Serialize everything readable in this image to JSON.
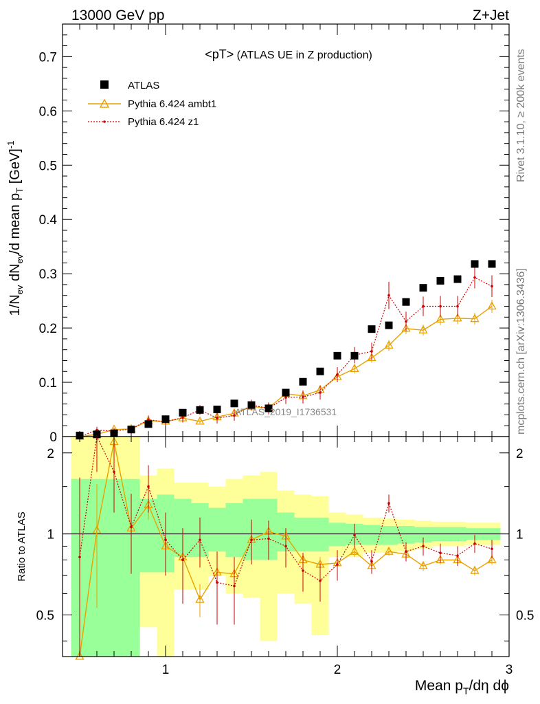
{
  "header": {
    "left": "13000 GeV pp",
    "right": "Z+Jet"
  },
  "plot_title": {
    "main": "<pT>",
    "sub": " (ATLAS UE in Z production)"
  },
  "side_label_top": "Rivet 3.1.10, ≥ 200k events",
  "side_label_bottom": "mcplots.cern.ch [arXiv:1306.3436]",
  "watermark": "ATLAS_2019_I1736531",
  "colors": {
    "atlas": "#000000",
    "ambt1": "#e8a100",
    "z1": "#cc0000",
    "band_inner": "#99ff99",
    "band_outer": "#ffff99"
  },
  "chart_data": {
    "type": "scatter",
    "x_label": "Mean p_T/dη dϕ",
    "y_label": "1/N_ev dN_ev/d mean p_T [GeV]^-1",
    "ratio_label": "Ratio to ATLAS",
    "xlim": [
      0.4,
      3.0
    ],
    "ylim": [
      0,
      0.76
    ],
    "ratio_ylim": [
      0.35,
      2.3
    ],
    "x_ticks": [
      1,
      2,
      3
    ],
    "y_ticks": [
      0,
      0.1,
      0.2,
      0.3,
      0.4,
      0.5,
      0.6,
      0.7
    ],
    "ratio_ticks": [
      0.5,
      1,
      2
    ],
    "y_tick_labels": [
      "0",
      "0.1",
      "0.2",
      "0.3",
      "0.4",
      "0.5",
      "0.6",
      "0.7"
    ],
    "x_tick_labels": [
      "1",
      "2",
      "3"
    ],
    "ratio_tick_labels": [
      "0.5",
      "1",
      "2"
    ],
    "x": [
      0.5,
      0.6,
      0.7,
      0.8,
      0.9,
      1.0,
      1.1,
      1.2,
      1.3,
      1.4,
      1.5,
      1.6,
      1.7,
      1.8,
      1.9,
      2.0,
      2.1,
      2.2,
      2.3,
      2.4,
      2.5,
      2.6,
      2.7,
      2.8,
      2.9
    ],
    "series": [
      {
        "name": "ATLAS",
        "style": "data",
        "values": [
          0.002,
          0.004,
          0.006,
          0.013,
          0.023,
          0.032,
          0.044,
          0.049,
          0.05,
          0.061,
          0.058,
          0.052,
          0.081,
          0.101,
          0.12,
          0.149,
          0.149,
          0.198,
          0.205,
          0.248,
          0.274,
          0.287,
          0.29,
          0.318,
          0.318
        ]
      },
      {
        "name": "Pythia 6.424 ambt1",
        "style": "triangle",
        "values": [
          0.0,
          0.004,
          0.013,
          0.014,
          0.029,
          0.028,
          0.034,
          0.028,
          0.036,
          0.043,
          0.055,
          0.053,
          0.079,
          0.075,
          0.086,
          0.11,
          0.125,
          0.145,
          0.168,
          0.199,
          0.196,
          0.216,
          0.218,
          0.217,
          0.24
        ],
        "errors": [
          0.002,
          0.002,
          0.003,
          0.003,
          0.004,
          0.004,
          0.004,
          0.004,
          0.005,
          0.005,
          0.006,
          0.006,
          0.007,
          0.007,
          0.008,
          0.008,
          0.009,
          0.009,
          0.01,
          0.01,
          0.01,
          0.011,
          0.011,
          0.011,
          0.012
        ],
        "ratio": [
          0.3,
          1.03,
          2.2,
          1.05,
          1.28,
          0.9,
          0.82,
          0.57,
          0.72,
          0.71,
          0.95,
          1.02,
          0.98,
          0.8,
          0.77,
          0.78,
          0.86,
          0.76,
          0.86,
          0.84,
          0.76,
          0.8,
          0.8,
          0.73,
          0.8
        ],
        "ratio_err": [
          0.2,
          0.5,
          0.4,
          0.25,
          0.15,
          0.12,
          0.1,
          0.08,
          0.09,
          0.08,
          0.09,
          0.08,
          0.07,
          0.05,
          0.05,
          0.04,
          0.04,
          0.03,
          0.03,
          0.03,
          0.03,
          0.03,
          0.03,
          0.03,
          0.03
        ]
      },
      {
        "name": "Pythia 6.424 z1",
        "style": "dot",
        "values": [
          0.0,
          0.012,
          0.01,
          0.014,
          0.031,
          0.027,
          0.035,
          0.049,
          0.034,
          0.039,
          0.058,
          0.052,
          0.072,
          0.073,
          0.081,
          0.114,
          0.15,
          0.157,
          0.26,
          0.212,
          0.24,
          0.24,
          0.24,
          0.293,
          0.277
        ],
        "errors": [
          0.003,
          0.006,
          0.006,
          0.006,
          0.008,
          0.008,
          0.009,
          0.009,
          0.01,
          0.01,
          0.01,
          0.011,
          0.012,
          0.012,
          0.013,
          0.014,
          0.015,
          0.016,
          0.025,
          0.018,
          0.018,
          0.019,
          0.019,
          0.02,
          0.02
        ],
        "ratio": [
          0.82,
          2.3,
          1.7,
          1.06,
          1.5,
          0.95,
          0.8,
          0.95,
          0.66,
          0.64,
          0.95,
          0.96,
          0.9,
          0.73,
          0.67,
          0.77,
          0.99,
          0.79,
          1.3,
          0.86,
          0.9,
          0.85,
          0.83,
          0.92,
          0.88
        ],
        "ratio_err": [
          0.8,
          0.6,
          0.5,
          0.35,
          0.3,
          0.25,
          0.25,
          0.2,
          0.2,
          0.18,
          0.18,
          0.16,
          0.15,
          0.12,
          0.11,
          0.1,
          0.1,
          0.08,
          0.1,
          0.07,
          0.07,
          0.07,
          0.07,
          0.07,
          0.07
        ]
      }
    ],
    "ratio_band": {
      "x_edges": [
        0.45,
        0.55,
        0.65,
        0.75,
        0.85,
        0.95,
        1.05,
        1.15,
        1.25,
        1.35,
        1.45,
        1.55,
        1.65,
        1.75,
        1.85,
        1.95,
        2.05,
        2.15,
        2.25,
        2.35,
        2.45,
        2.55,
        2.65,
        2.75,
        2.85,
        2.95
      ],
      "inner": [
        [
          0.35,
          1.6
        ],
        [
          0.35,
          1.6
        ],
        [
          0.35,
          1.6
        ],
        [
          0.35,
          1.6
        ],
        [
          0.72,
          1.35
        ],
        [
          0.72,
          1.4
        ],
        [
          0.82,
          1.35
        ],
        [
          0.82,
          1.3
        ],
        [
          0.86,
          1.25
        ],
        [
          0.82,
          1.3
        ],
        [
          0.8,
          1.35
        ],
        [
          0.8,
          1.35
        ],
        [
          0.86,
          1.2
        ],
        [
          0.86,
          1.15
        ],
        [
          0.86,
          1.15
        ],
        [
          0.9,
          1.1
        ],
        [
          0.91,
          1.09
        ],
        [
          0.91,
          1.08
        ],
        [
          0.91,
          1.07
        ],
        [
          0.92,
          1.07
        ],
        [
          0.93,
          1.06
        ],
        [
          0.94,
          1.06
        ],
        [
          0.94,
          1.06
        ],
        [
          0.95,
          1.05
        ],
        [
          0.95,
          1.05
        ]
      ],
      "outer": [
        [
          0.35,
          2.3
        ],
        [
          0.35,
          2.3
        ],
        [
          0.35,
          2.3
        ],
        [
          0.35,
          2.3
        ],
        [
          0.45,
          1.65
        ],
        [
          0.35,
          1.75
        ],
        [
          0.62,
          1.55
        ],
        [
          0.62,
          1.55
        ],
        [
          0.7,
          1.5
        ],
        [
          0.6,
          1.6
        ],
        [
          0.58,
          1.65
        ],
        [
          0.4,
          1.7
        ],
        [
          0.6,
          1.45
        ],
        [
          0.55,
          1.4
        ],
        [
          0.42,
          1.38
        ],
        [
          0.82,
          1.2
        ],
        [
          0.82,
          1.18
        ],
        [
          0.85,
          1.15
        ],
        [
          0.85,
          1.14
        ],
        [
          0.86,
          1.13
        ],
        [
          0.88,
          1.12
        ],
        [
          0.9,
          1.11
        ],
        [
          0.9,
          1.11
        ],
        [
          0.91,
          1.1
        ],
        [
          0.91,
          1.1
        ]
      ]
    }
  }
}
